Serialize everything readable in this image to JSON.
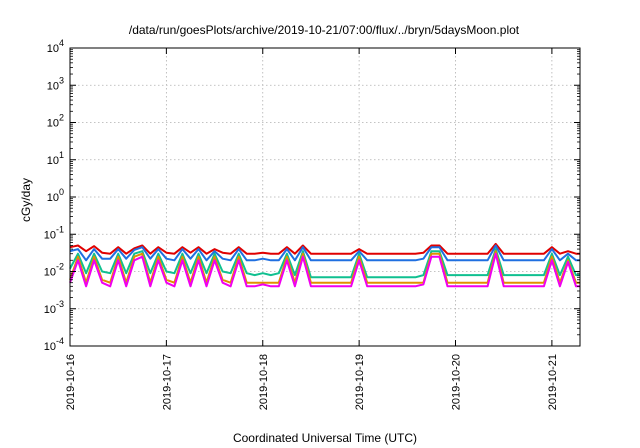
{
  "chart_data": {
    "type": "line",
    "title": "/data/run/goesPlots/archive/2019-10-21/07:00/flux/../bryn/5daysMoon.plot",
    "xlabel": "Coordinated Universal Time (UTC)",
    "ylabel": "cGy/day",
    "y_scale": "log",
    "ylim": [
      0.0001,
      10000
    ],
    "y_ticks": [
      {
        "value": 0.0001,
        "base": "10",
        "exp": "-4"
      },
      {
        "value": 0.001,
        "base": "10",
        "exp": "-3"
      },
      {
        "value": 0.01,
        "base": "10",
        "exp": "-2"
      },
      {
        "value": 0.1,
        "base": "10",
        "exp": "-1"
      },
      {
        "value": 1,
        "base": "10",
        "exp": "0"
      },
      {
        "value": 10,
        "base": "10",
        "exp": "1"
      },
      {
        "value": 100,
        "base": "10",
        "exp": "2"
      },
      {
        "value": 1000,
        "base": "10",
        "exp": "3"
      },
      {
        "value": 10000,
        "base": "10",
        "exp": "4"
      }
    ],
    "xlim": [
      "2019-10-16",
      "2019-10-21T07:00"
    ],
    "x_ticks": [
      "2019-10-16",
      "2019-10-17",
      "2019-10-18",
      "2019-10-19",
      "2019-10-20",
      "2019-10-21"
    ],
    "grid": true,
    "x": [
      "2019-10-16 00:00",
      "2019-10-16 02:00",
      "2019-10-16 04:00",
      "2019-10-16 06:00",
      "2019-10-16 08:00",
      "2019-10-16 10:00",
      "2019-10-16 12:00",
      "2019-10-16 14:00",
      "2019-10-16 16:00",
      "2019-10-16 18:00",
      "2019-10-16 20:00",
      "2019-10-16 22:00",
      "2019-10-17 00:00",
      "2019-10-17 02:00",
      "2019-10-17 04:00",
      "2019-10-17 06:00",
      "2019-10-17 08:00",
      "2019-10-17 10:00",
      "2019-10-17 12:00",
      "2019-10-17 14:00",
      "2019-10-17 16:00",
      "2019-10-17 18:00",
      "2019-10-17 20:00",
      "2019-10-17 22:00",
      "2019-10-18 00:00",
      "2019-10-18 02:00",
      "2019-10-18 04:00",
      "2019-10-18 06:00",
      "2019-10-18 08:00",
      "2019-10-18 10:00",
      "2019-10-18 12:00",
      "2019-10-18 14:00",
      "2019-10-18 16:00",
      "2019-10-18 18:00",
      "2019-10-18 20:00",
      "2019-10-18 22:00",
      "2019-10-19 00:00",
      "2019-10-19 02:00",
      "2019-10-19 04:00",
      "2019-10-19 06:00",
      "2019-10-19 08:00",
      "2019-10-19 10:00",
      "2019-10-19 12:00",
      "2019-10-19 14:00",
      "2019-10-19 16:00",
      "2019-10-19 18:00",
      "2019-10-19 20:00",
      "2019-10-19 22:00",
      "2019-10-20 00:00",
      "2019-10-20 02:00",
      "2019-10-20 04:00",
      "2019-10-20 06:00",
      "2019-10-20 08:00",
      "2019-10-20 10:00",
      "2019-10-20 12:00",
      "2019-10-20 14:00",
      "2019-10-20 16:00",
      "2019-10-20 18:00",
      "2019-10-20 20:00",
      "2019-10-20 22:00",
      "2019-10-21 00:00",
      "2019-10-21 02:00",
      "2019-10-21 04:00",
      "2019-10-21 06:00",
      "2019-10-21 07:00"
    ],
    "series": [
      {
        "color": "#e00000",
        "values": [
          0.045,
          0.05,
          0.035,
          0.048,
          0.032,
          0.03,
          0.045,
          0.03,
          0.042,
          0.05,
          0.03,
          0.045,
          0.032,
          0.03,
          0.045,
          0.032,
          0.045,
          0.03,
          0.04,
          0.032,
          0.03,
          0.045,
          0.03,
          0.03,
          0.032,
          0.03,
          0.03,
          0.045,
          0.03,
          0.05,
          0.03,
          0.03,
          0.03,
          0.03,
          0.03,
          0.03,
          0.04,
          0.03,
          0.03,
          0.03,
          0.03,
          0.03,
          0.03,
          0.03,
          0.032,
          0.05,
          0.05,
          0.03,
          0.03,
          0.03,
          0.03,
          0.03,
          0.03,
          0.055,
          0.03,
          0.03,
          0.03,
          0.03,
          0.03,
          0.03,
          0.045,
          0.03,
          0.035,
          0.03,
          0.03
        ]
      },
      {
        "color": "#1f6fe0",
        "values": [
          0.035,
          0.04,
          0.02,
          0.04,
          0.022,
          0.022,
          0.04,
          0.022,
          0.038,
          0.045,
          0.022,
          0.04,
          0.022,
          0.02,
          0.04,
          0.022,
          0.04,
          0.02,
          0.035,
          0.022,
          0.02,
          0.04,
          0.02,
          0.02,
          0.022,
          0.02,
          0.02,
          0.04,
          0.02,
          0.045,
          0.02,
          0.02,
          0.02,
          0.02,
          0.02,
          0.02,
          0.035,
          0.02,
          0.02,
          0.02,
          0.02,
          0.02,
          0.02,
          0.02,
          0.022,
          0.045,
          0.045,
          0.02,
          0.02,
          0.02,
          0.02,
          0.02,
          0.02,
          0.05,
          0.02,
          0.02,
          0.02,
          0.02,
          0.02,
          0.02,
          0.04,
          0.02,
          0.03,
          0.02,
          0.02
        ]
      },
      {
        "color": "#10c090",
        "values": [
          0.012,
          0.03,
          0.009,
          0.03,
          0.01,
          0.009,
          0.03,
          0.009,
          0.03,
          0.035,
          0.009,
          0.03,
          0.01,
          0.009,
          0.03,
          0.009,
          0.03,
          0.009,
          0.03,
          0.01,
          0.009,
          0.03,
          0.009,
          0.008,
          0.009,
          0.008,
          0.009,
          0.03,
          0.008,
          0.035,
          0.007,
          0.007,
          0.007,
          0.007,
          0.007,
          0.007,
          0.03,
          0.007,
          0.007,
          0.007,
          0.007,
          0.007,
          0.007,
          0.007,
          0.008,
          0.035,
          0.035,
          0.008,
          0.008,
          0.008,
          0.008,
          0.008,
          0.008,
          0.04,
          0.008,
          0.008,
          0.008,
          0.008,
          0.008,
          0.008,
          0.03,
          0.008,
          0.025,
          0.008,
          0.008
        ]
      },
      {
        "color": "#e09000",
        "values": [
          0.006,
          0.025,
          0.005,
          0.025,
          0.006,
          0.005,
          0.025,
          0.005,
          0.025,
          0.03,
          0.005,
          0.025,
          0.006,
          0.005,
          0.025,
          0.005,
          0.025,
          0.005,
          0.025,
          0.006,
          0.005,
          0.025,
          0.005,
          0.005,
          0.005,
          0.005,
          0.005,
          0.025,
          0.005,
          0.03,
          0.005,
          0.005,
          0.005,
          0.005,
          0.005,
          0.005,
          0.025,
          0.005,
          0.005,
          0.005,
          0.005,
          0.005,
          0.005,
          0.005,
          0.005,
          0.03,
          0.03,
          0.005,
          0.005,
          0.005,
          0.005,
          0.005,
          0.005,
          0.035,
          0.005,
          0.005,
          0.005,
          0.005,
          0.005,
          0.005,
          0.025,
          0.005,
          0.02,
          0.005,
          0.005
        ]
      },
      {
        "color": "#f000f0",
        "values": [
          0.005,
          0.02,
          0.004,
          0.02,
          0.005,
          0.004,
          0.02,
          0.004,
          0.02,
          0.025,
          0.004,
          0.02,
          0.005,
          0.004,
          0.02,
          0.004,
          0.02,
          0.004,
          0.02,
          0.005,
          0.004,
          0.02,
          0.004,
          0.004,
          0.0045,
          0.004,
          0.004,
          0.02,
          0.004,
          0.025,
          0.004,
          0.004,
          0.004,
          0.004,
          0.004,
          0.004,
          0.02,
          0.004,
          0.004,
          0.004,
          0.004,
          0.004,
          0.004,
          0.004,
          0.0045,
          0.025,
          0.025,
          0.004,
          0.004,
          0.004,
          0.004,
          0.004,
          0.004,
          0.03,
          0.004,
          0.004,
          0.004,
          0.004,
          0.004,
          0.004,
          0.02,
          0.004,
          0.018,
          0.004,
          0.004
        ]
      }
    ]
  }
}
